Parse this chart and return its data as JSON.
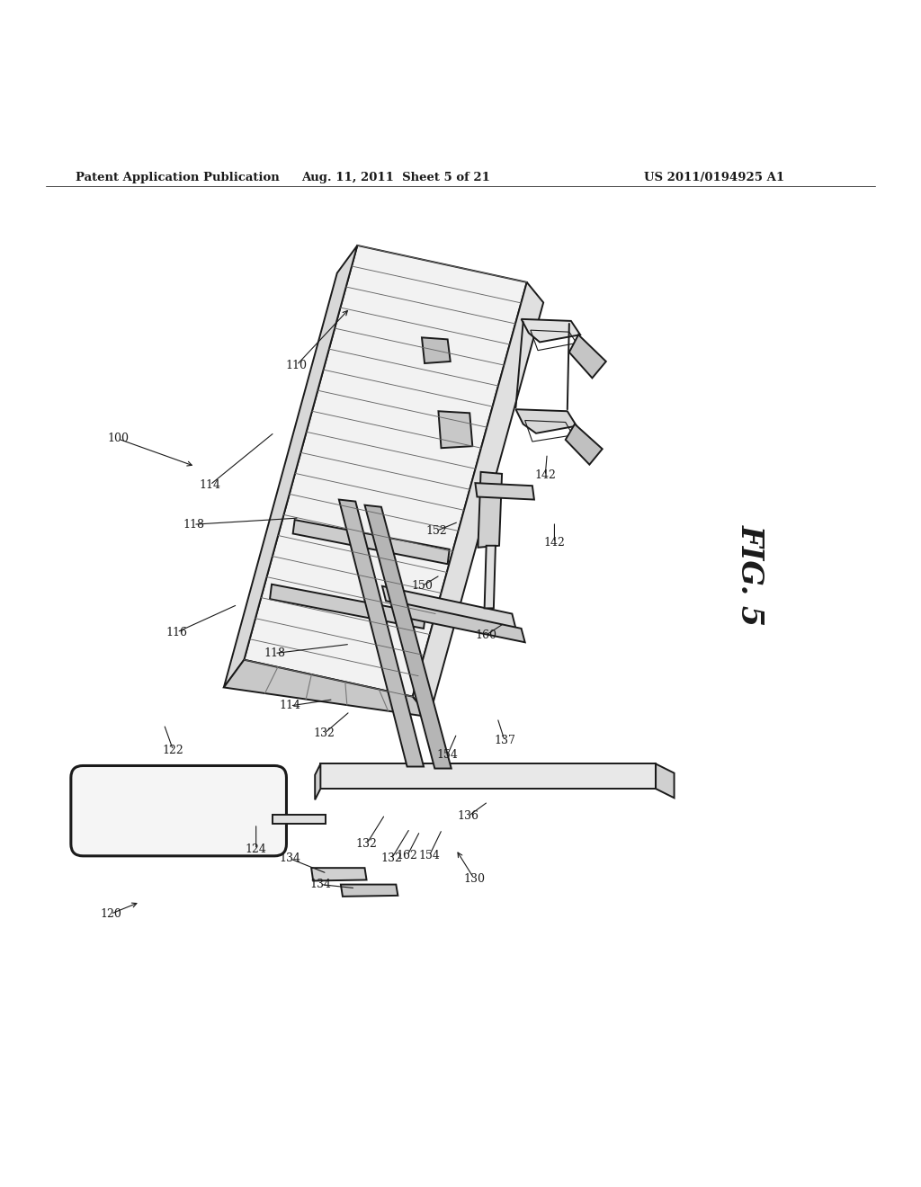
{
  "background_color": "#ffffff",
  "line_color": "#1a1a1a",
  "header_left": "Patent Application Publication",
  "header_mid": "Aug. 11, 2011  Sheet 5 of 21",
  "header_right": "US 2011/0194925 A1",
  "fig_label": "FIG. 5"
}
